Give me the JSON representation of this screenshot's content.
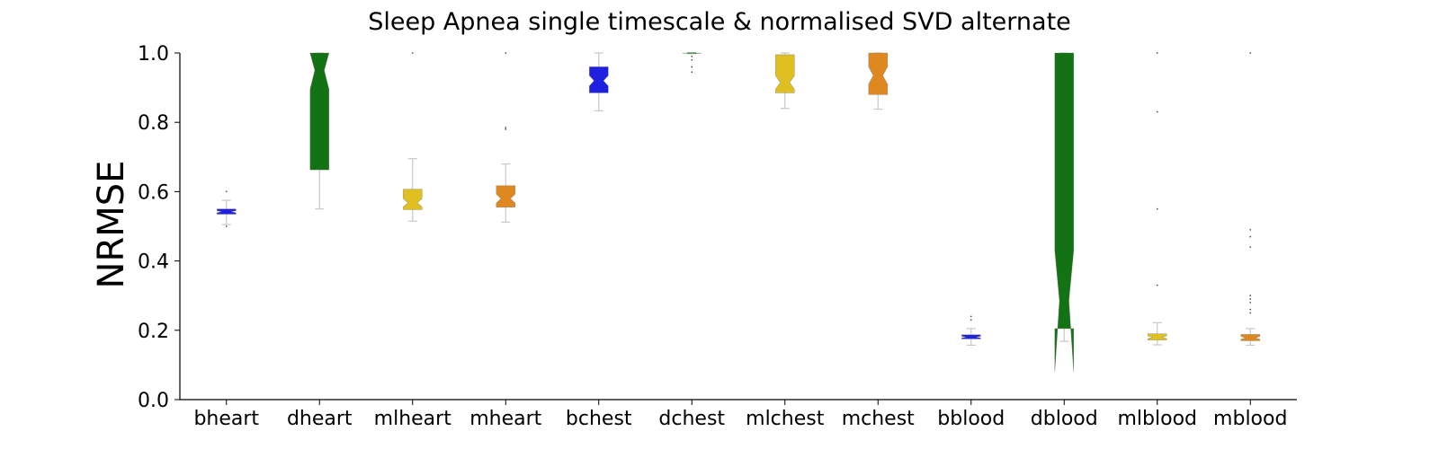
{
  "chart_data": {
    "type": "box",
    "title": "Sleep Apnea single timescale & normalised SVD alternate",
    "xlabel": "",
    "ylabel": "NRMSE",
    "ylim": [
      0.0,
      1.0
    ],
    "yticks": [
      "0.0",
      "0.2",
      "0.4",
      "0.6",
      "0.8",
      "1.0"
    ],
    "notched": true,
    "grid": false,
    "boxes": [
      {
        "category": "bheart",
        "color": "#2020e0",
        "min": 0.505,
        "q1": 0.535,
        "median": 0.542,
        "q3": 0.55,
        "max": 0.575,
        "notch_low": 0.539,
        "notch_high": 0.545,
        "fliers": [
          0.5,
          0.6
        ]
      },
      {
        "category": "dheart",
        "color": "#137314",
        "min": 0.55,
        "q1": 0.663,
        "median": 0.95,
        "q3": 1.0,
        "max": 1.0,
        "notch_low": 0.895,
        "notch_high": 1.0,
        "fliers": []
      },
      {
        "category": "mlheart",
        "color": "#e0c020",
        "min": 0.515,
        "q1": 0.548,
        "median": 0.568,
        "q3": 0.607,
        "max": 0.695,
        "notch_low": 0.556,
        "notch_high": 0.58,
        "fliers": [
          1.0
        ]
      },
      {
        "category": "mheart",
        "color": "#e08820",
        "min": 0.512,
        "q1": 0.555,
        "median": 0.58,
        "q3": 0.617,
        "max": 0.68,
        "notch_low": 0.567,
        "notch_high": 0.593,
        "fliers": [
          0.78,
          0.785,
          1.0
        ]
      },
      {
        "category": "bchest",
        "color": "#2020e0",
        "min": 0.833,
        "q1": 0.885,
        "median": 0.92,
        "q3": 0.96,
        "max": 1.0,
        "notch_low": 0.905,
        "notch_high": 0.935,
        "fliers": []
      },
      {
        "category": "dchest",
        "color": "#137314",
        "min": 0.998,
        "q1": 0.999,
        "median": 1.0,
        "q3": 1.0,
        "max": 1.0,
        "notch_low": 0.999,
        "notch_high": 1.0,
        "fliers": [
          0.945,
          0.96,
          0.98,
          0.99
        ]
      },
      {
        "category": "mlchest",
        "color": "#e0c020",
        "min": 0.84,
        "q1": 0.885,
        "median": 0.915,
        "q3": 0.995,
        "max": 1.0,
        "notch_low": 0.895,
        "notch_high": 0.935,
        "fliers": []
      },
      {
        "category": "mchest",
        "color": "#e08820",
        "min": 0.838,
        "q1": 0.88,
        "median": 0.935,
        "q3": 1.0,
        "max": 1.0,
        "notch_low": 0.91,
        "notch_high": 0.96,
        "fliers": []
      },
      {
        "category": "bblood",
        "color": "#2020e0",
        "min": 0.157,
        "q1": 0.175,
        "median": 0.18,
        "q3": 0.187,
        "max": 0.205,
        "notch_low": 0.178,
        "notch_high": 0.183,
        "fliers": [
          0.23,
          0.24
        ]
      },
      {
        "category": "dblood",
        "color": "#137314",
        "min": 0.168,
        "q1": 0.205,
        "median": 0.285,
        "q3": 1.0,
        "max": 1.0,
        "notch_low": 0.08,
        "notch_high": 0.43,
        "fliers": []
      },
      {
        "category": "mlblood",
        "color": "#e0c020",
        "min": 0.158,
        "q1": 0.172,
        "median": 0.18,
        "q3": 0.19,
        "max": 0.222,
        "notch_low": 0.176,
        "notch_high": 0.184,
        "fliers": [
          0.33,
          0.55,
          0.83,
          1.0
        ]
      },
      {
        "category": "mblood",
        "color": "#e08820",
        "min": 0.157,
        "q1": 0.17,
        "median": 0.178,
        "q3": 0.188,
        "max": 0.205,
        "notch_low": 0.174,
        "notch_high": 0.182,
        "fliers": [
          0.25,
          0.26,
          0.28,
          0.29,
          0.3,
          0.44,
          0.47,
          0.49,
          1.0
        ]
      }
    ]
  }
}
